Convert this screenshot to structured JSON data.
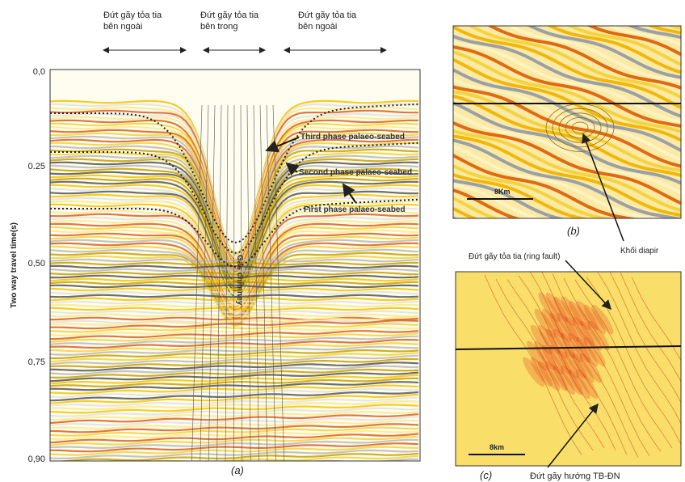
{
  "panel_a": {
    "headers": [
      {
        "lines": [
          "Đứt gãy tỏa tia",
          "bên ngoài"
        ]
      },
      {
        "lines": [
          "Đứt gãy tỏa tia",
          "bên trong"
        ]
      },
      {
        "lines": [
          "Đứt gãy tỏa tia",
          "bên ngoài"
        ]
      }
    ],
    "y_axis": {
      "label": "Two way travel time(s)",
      "ticks": [
        "0,0",
        "0.25",
        "0,50",
        "0,75",
        "0,90"
      ]
    },
    "annotations": [
      "Third phase palaeo-seabed",
      "Second phase palaeo-seabed",
      "First phase palaeo-seabed",
      "Gas chimney"
    ],
    "caption": "(a)"
  },
  "panel_b": {
    "scale": "8Km",
    "caption": "(b)",
    "label": "Khối diapir"
  },
  "panel_c": {
    "label_top": "Đứt gãy tỏa tia (ring fault)",
    "scale": "8km",
    "caption": "(c)",
    "label_bottom": "Đứt gãy hướng TB-ĐN"
  }
}
